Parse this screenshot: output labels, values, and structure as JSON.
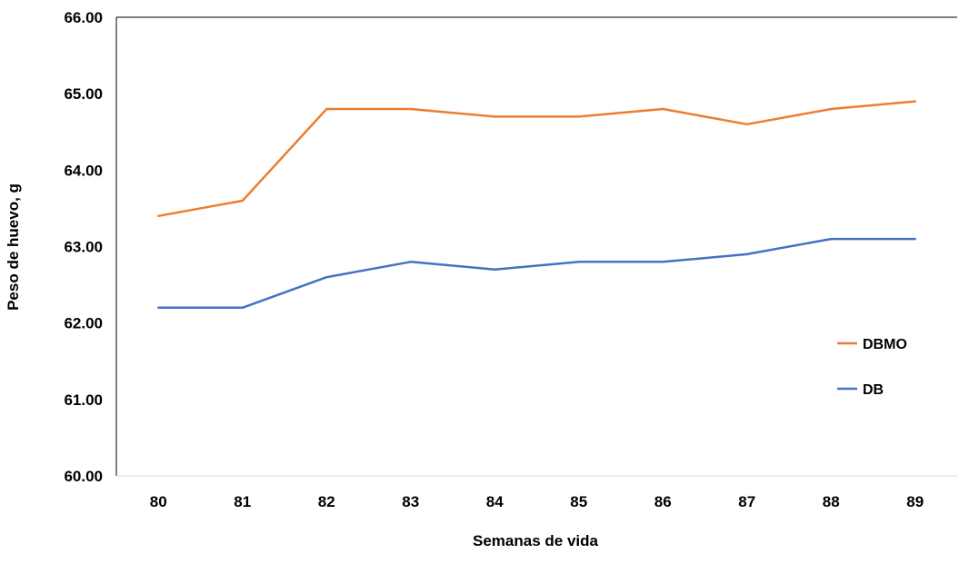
{
  "chart_data": {
    "type": "line",
    "title": "",
    "xlabel": "Semanas de vida",
    "ylabel": "Peso de huevo, g",
    "ylim": [
      60,
      66
    ],
    "y_ticks": [
      "60.00",
      "61.00",
      "62.00",
      "63.00",
      "64.00",
      "65.00",
      "66.00"
    ],
    "categories": [
      "80",
      "81",
      "82",
      "83",
      "84",
      "85",
      "86",
      "87",
      "88",
      "89"
    ],
    "grid": false,
    "legend_position": "right",
    "series": [
      {
        "name": "DBMO",
        "color": "#ED7D31",
        "values": [
          63.4,
          63.6,
          64.8,
          64.8,
          64.7,
          64.7,
          64.8,
          64.6,
          64.8,
          64.9
        ]
      },
      {
        "name": "DB",
        "color": "#4472C4",
        "values": [
          62.2,
          62.2,
          62.6,
          62.8,
          62.7,
          62.8,
          62.8,
          62.9,
          63.1,
          63.1
        ]
      }
    ]
  }
}
